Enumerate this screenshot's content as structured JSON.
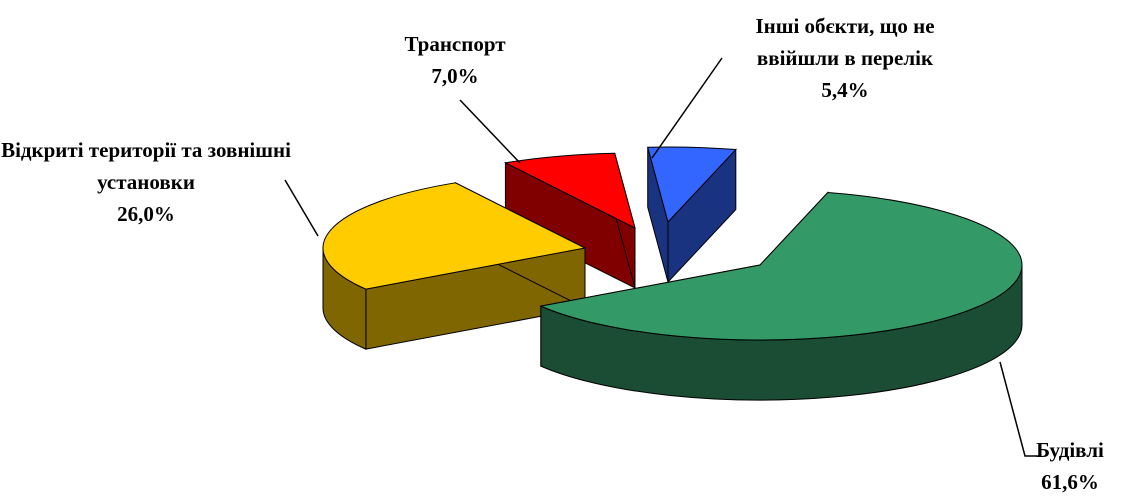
{
  "chart_data": {
    "type": "pie3d",
    "categories": [
      "Будівлі",
      "Відкриті території та зовнішні установки",
      "Транспорт",
      "Інші обєкти, що не ввійшли в перелік"
    ],
    "values": [
      61.6,
      26.0,
      7.0,
      5.4
    ],
    "value_labels": [
      "61,6%",
      "26,0%",
      "7,0%",
      "5,4%"
    ],
    "colors": [
      "#339966",
      "#ffcc00",
      "#ff0000",
      "#3366ff"
    ]
  }
}
